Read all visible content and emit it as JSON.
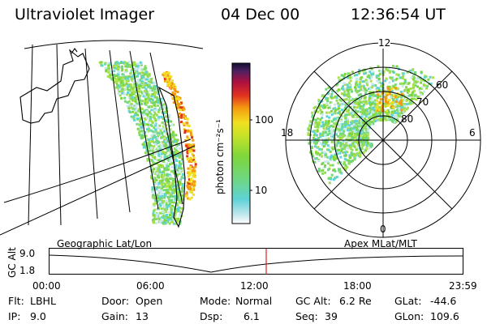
{
  "header": {
    "instrument": "Ultraviolet Imager",
    "date": "04 Dec 00",
    "time": "12:36:54 UT"
  },
  "colorbar": {
    "unit_label": "photon cm⁻²s⁻¹",
    "ticks": [
      "100",
      "10"
    ]
  },
  "polar_plot": {
    "mlt_labels": [
      "12",
      "18",
      "6",
      "0"
    ],
    "lat_labels": [
      "60",
      "70",
      "80"
    ]
  },
  "left_panel": {
    "title": "Geographic Lat/Lon"
  },
  "right_panel": {
    "title": "Apex MLat/MLT"
  },
  "altitude_plot": {
    "ylabel": "GC Alt",
    "yticks": [
      "9.0",
      "1.8"
    ],
    "xticks": [
      "00:00",
      "06:00",
      "12:00",
      "18:00",
      "23:59"
    ],
    "marker_color": "#e02020"
  },
  "info": {
    "flt_label": "Flt:",
    "flt_value": "LBHL",
    "ip_label": "IP:",
    "ip_value": "9.0",
    "door_label": "Door:",
    "door_value": "Open",
    "gain_label": "Gain:",
    "gain_value": "13",
    "mode_label": "Mode:",
    "mode_value": "Normal",
    "dsp_label": "Dsp:",
    "dsp_value": "6.1",
    "gcalt_label": "GC Alt:",
    "gcalt_value": "6.2 Re",
    "seq_label": "Seq:",
    "seq_value": "39",
    "glat_label": "GLat:",
    "glat_value": "-44.6",
    "glon_label": "GLon:",
    "glon_value": "109.6"
  }
}
